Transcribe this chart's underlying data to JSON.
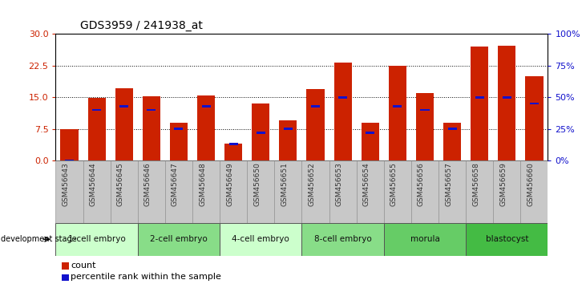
{
  "title": "GDS3959 / 241938_at",
  "samples": [
    "GSM456643",
    "GSM456644",
    "GSM456645",
    "GSM456646",
    "GSM456647",
    "GSM456648",
    "GSM456649",
    "GSM456650",
    "GSM456651",
    "GSM456652",
    "GSM456653",
    "GSM456654",
    "GSM456655",
    "GSM456656",
    "GSM456657",
    "GSM456658",
    "GSM456659",
    "GSM456660"
  ],
  "counts": [
    7.5,
    14.8,
    17.2,
    15.2,
    9.0,
    15.5,
    4.0,
    13.5,
    9.5,
    17.0,
    23.2,
    9.0,
    22.5,
    16.0,
    9.0,
    27.0,
    27.2,
    20.0
  ],
  "percentiles": [
    0.0,
    40.0,
    43.0,
    40.0,
    25.0,
    43.0,
    13.0,
    22.0,
    25.0,
    43.0,
    50.0,
    22.0,
    43.0,
    40.0,
    25.0,
    50.0,
    50.0,
    45.0
  ],
  "bar_color": "#CC2200",
  "blue_color": "#1111CC",
  "stages": [
    {
      "label": "1-cell embryo",
      "start": 0,
      "end": 3
    },
    {
      "label": "2-cell embryo",
      "start": 3,
      "end": 6
    },
    {
      "label": "4-cell embryo",
      "start": 6,
      "end": 9
    },
    {
      "label": "8-cell embryo",
      "start": 9,
      "end": 12
    },
    {
      "label": "morula",
      "start": 12,
      "end": 15
    },
    {
      "label": "blastocyst",
      "start": 15,
      "end": 18
    }
  ],
  "stage_colors": [
    "#CCFFCC",
    "#88DD88",
    "#CCFFCC",
    "#88DD88",
    "#66CC66",
    "#44BB44"
  ],
  "ylim_left": [
    0,
    30
  ],
  "ylim_right": [
    0,
    100
  ],
  "yticks_left": [
    0,
    7.5,
    15,
    22.5,
    30
  ],
  "yticks_right": [
    0,
    25,
    50,
    75,
    100
  ],
  "bar_width": 0.65
}
